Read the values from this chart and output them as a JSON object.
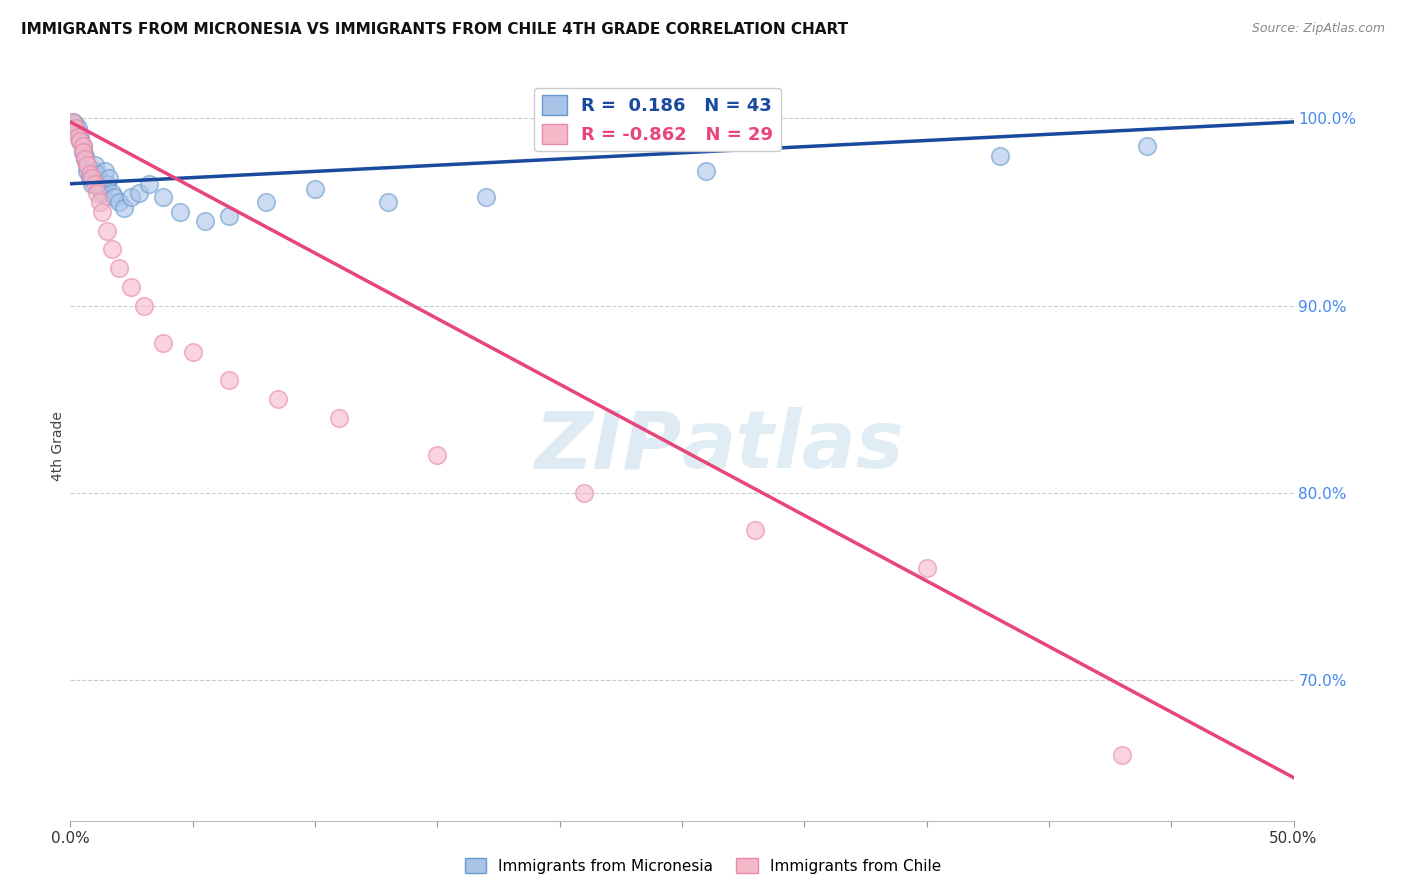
{
  "title": "IMMIGRANTS FROM MICRONESIA VS IMMIGRANTS FROM CHILE 4TH GRADE CORRELATION CHART",
  "source": "Source: ZipAtlas.com",
  "ylabel": "4th Grade",
  "xlim": [
    0.0,
    0.5
  ],
  "ylim": [
    0.625,
    1.025
  ],
  "xtick_positions": [
    0.0,
    0.05,
    0.1,
    0.15,
    0.2,
    0.25,
    0.3,
    0.35,
    0.4,
    0.45,
    0.5
  ],
  "xticklabels": [
    "0.0%",
    "",
    "",
    "",
    "",
    "",
    "",
    "",
    "",
    "",
    "50.0%"
  ],
  "yticks_right": [
    0.7,
    0.8,
    0.9,
    1.0
  ],
  "ytick_right_labels": [
    "70.0%",
    "80.0%",
    "90.0%",
    "100.0%"
  ],
  "blue_R": 0.186,
  "blue_N": 43,
  "pink_R": -0.862,
  "pink_N": 29,
  "blue_color": "#aac4e8",
  "pink_color": "#f5b8c8",
  "blue_edge_color": "#6699cc",
  "pink_edge_color": "#e888aa",
  "blue_line_color": "#1a4a9e",
  "pink_line_color": "#e8457a",
  "grid_color": "#cccccc",
  "watermark_color": "#b8d0e8",
  "blue_scatter_x": [
    0.001,
    0.002,
    0.003,
    0.003,
    0.004,
    0.004,
    0.005,
    0.005,
    0.006,
    0.006,
    0.007,
    0.007,
    0.008,
    0.008,
    0.009,
    0.009,
    0.01,
    0.01,
    0.011,
    0.011,
    0.012,
    0.013,
    0.014,
    0.015,
    0.016,
    0.017,
    0.018,
    0.02,
    0.022,
    0.025,
    0.028,
    0.032,
    0.038,
    0.045,
    0.055,
    0.065,
    0.08,
    0.1,
    0.13,
    0.17,
    0.26,
    0.38,
    0.44
  ],
  "blue_scatter_y": [
    0.998,
    0.997,
    0.995,
    0.992,
    0.99,
    0.988,
    0.985,
    0.982,
    0.98,
    0.978,
    0.975,
    0.972,
    0.97,
    0.968,
    0.965,
    0.968,
    0.972,
    0.975,
    0.97,
    0.965,
    0.962,
    0.96,
    0.972,
    0.965,
    0.968,
    0.96,
    0.958,
    0.955,
    0.952,
    0.958,
    0.96,
    0.965,
    0.958,
    0.95,
    0.945,
    0.948,
    0.955,
    0.962,
    0.955,
    0.958,
    0.972,
    0.98,
    0.985
  ],
  "pink_scatter_x": [
    0.001,
    0.002,
    0.003,
    0.004,
    0.005,
    0.005,
    0.006,
    0.007,
    0.008,
    0.009,
    0.01,
    0.011,
    0.012,
    0.013,
    0.015,
    0.017,
    0.02,
    0.025,
    0.03,
    0.038,
    0.05,
    0.065,
    0.085,
    0.11,
    0.15,
    0.21,
    0.28,
    0.35,
    0.43
  ],
  "pink_scatter_y": [
    0.998,
    0.995,
    0.99,
    0.988,
    0.985,
    0.982,
    0.978,
    0.975,
    0.97,
    0.968,
    0.965,
    0.96,
    0.955,
    0.95,
    0.94,
    0.93,
    0.92,
    0.91,
    0.9,
    0.88,
    0.875,
    0.86,
    0.85,
    0.84,
    0.82,
    0.8,
    0.78,
    0.76,
    0.66
  ],
  "blue_trend_x": [
    0.0,
    0.5
  ],
  "blue_trend_y": [
    0.965,
    0.998
  ],
  "pink_trend_x": [
    0.0,
    0.5
  ],
  "pink_trend_y": [
    0.998,
    0.648
  ]
}
